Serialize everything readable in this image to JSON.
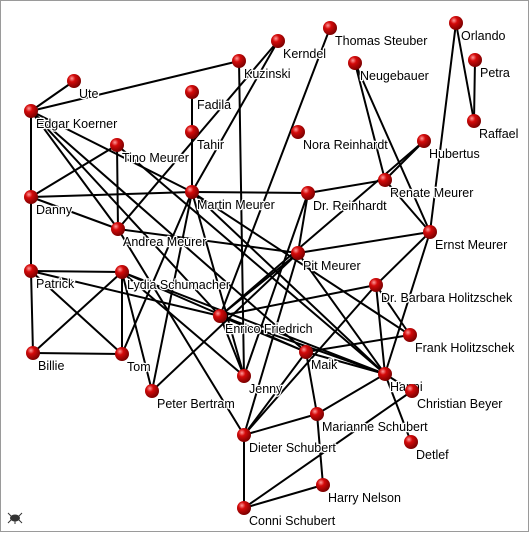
{
  "graph": {
    "nodes": [
      {
        "id": "ute",
        "label": "Ute"
      },
      {
        "id": "edgar_koerner",
        "label": "Edgar Koerner"
      },
      {
        "id": "danny",
        "label": "Danny"
      },
      {
        "id": "patrick",
        "label": "Patrick"
      },
      {
        "id": "billie",
        "label": "Billie"
      },
      {
        "id": "tino_meurer",
        "label": "Tino Meurer"
      },
      {
        "id": "andrea_meurer",
        "label": "Andrea Meurer"
      },
      {
        "id": "lydia_schumacher",
        "label": "Lydia Schumacher"
      },
      {
        "id": "tom",
        "label": "Tom"
      },
      {
        "id": "peter_bertram",
        "label": "Peter Bertram"
      },
      {
        "id": "kuzinski",
        "label": "Kuzinski"
      },
      {
        "id": "kerndel",
        "label": "Kerndel"
      },
      {
        "id": "thomas_steuber",
        "label": "Thomas Steuber"
      },
      {
        "id": "fadila",
        "label": "Fadila"
      },
      {
        "id": "tahir",
        "label": "Tahir"
      },
      {
        "id": "martin_meurer",
        "label": "Martin Meurer"
      },
      {
        "id": "enrico_friedrich",
        "label": "Enrico Friedrich"
      },
      {
        "id": "jenny",
        "label": "Jenny"
      },
      {
        "id": "dieter_schubert",
        "label": "Dieter Schubert"
      },
      {
        "id": "conni_schubert",
        "label": "Conni Schubert"
      },
      {
        "id": "harry_nelson",
        "label": "Harry Nelson"
      },
      {
        "id": "marianne_schubert",
        "label": "Marianne Schubert"
      },
      {
        "id": "maik",
        "label": "Maik"
      },
      {
        "id": "pit_meurer",
        "label": "Pit Meurer"
      },
      {
        "id": "dr_reinhardt",
        "label": "Dr. Reinhardt"
      },
      {
        "id": "nora_reinhardt",
        "label": "Nora Reinhardt"
      },
      {
        "id": "neugebauer",
        "label": "Neugebauer"
      },
      {
        "id": "renate_meurer",
        "label": "Renate Meurer"
      },
      {
        "id": "hubertus",
        "label": "Hubertus"
      },
      {
        "id": "ernst_meurer",
        "label": "Ernst Meurer"
      },
      {
        "id": "orlando",
        "label": "Orlando"
      },
      {
        "id": "petra",
        "label": "Petra"
      },
      {
        "id": "raffael",
        "label": "Raffael"
      },
      {
        "id": "dr_barbara_holitzschek",
        "label": "Dr. Barbara Holitzschek"
      },
      {
        "id": "frank_holitzschek",
        "label": "Frank Holitzschek"
      },
      {
        "id": "hanni",
        "label": "Hanni"
      },
      {
        "id": "christian_beyer",
        "label": "Christian Beyer"
      },
      {
        "id": "detlef",
        "label": "Detlef"
      }
    ],
    "edges": [
      [
        "ute",
        "edgar_koerner"
      ],
      [
        "edgar_koerner",
        "kuzinski"
      ],
      [
        "edgar_koerner",
        "danny"
      ],
      [
        "edgar_koerner",
        "patrick"
      ],
      [
        "edgar_koerner",
        "andrea_meurer"
      ],
      [
        "edgar_koerner",
        "martin_meurer"
      ],
      [
        "edgar_koerner",
        "enrico_friedrich"
      ],
      [
        "edgar_koerner",
        "maik"
      ],
      [
        "danny",
        "tino_meurer"
      ],
      [
        "danny",
        "martin_meurer"
      ],
      [
        "danny",
        "andrea_meurer"
      ],
      [
        "tino_meurer",
        "andrea_meurer"
      ],
      [
        "tino_meurer",
        "hanni"
      ],
      [
        "andrea_meurer",
        "kerndel"
      ],
      [
        "andrea_meurer",
        "pit_meurer"
      ],
      [
        "andrea_meurer",
        "dieter_schubert"
      ],
      [
        "patrick",
        "lydia_schumacher"
      ],
      [
        "patrick",
        "billie"
      ],
      [
        "patrick",
        "tom"
      ],
      [
        "patrick",
        "enrico_friedrich"
      ],
      [
        "lydia_schumacher",
        "billie"
      ],
      [
        "lydia_schumacher",
        "tom"
      ],
      [
        "lydia_schumacher",
        "peter_bertram"
      ],
      [
        "lydia_schumacher",
        "maik"
      ],
      [
        "lydia_schumacher",
        "hanni"
      ],
      [
        "billie",
        "tom"
      ],
      [
        "tom",
        "martin_meurer"
      ],
      [
        "kuzinski",
        "jenny"
      ],
      [
        "kerndel",
        "martin_meurer"
      ],
      [
        "thomas_steuber",
        "enrico_friedrich"
      ],
      [
        "fadila",
        "tahir"
      ],
      [
        "tahir",
        "martin_meurer"
      ],
      [
        "martin_meurer",
        "peter_bertram"
      ],
      [
        "martin_meurer",
        "dr_reinhardt"
      ],
      [
        "martin_meurer",
        "hanni"
      ],
      [
        "martin_meurer",
        "frank_holitzschek"
      ],
      [
        "peter_bertram",
        "pit_meurer"
      ],
      [
        "pit_meurer",
        "ernst_meurer"
      ],
      [
        "pit_meurer",
        "hanni"
      ],
      [
        "pit_meurer",
        "dr_reinhardt"
      ],
      [
        "pit_meurer",
        "dieter_schubert"
      ],
      [
        "pit_meurer",
        "enrico_friedrich"
      ],
      [
        "dr_reinhardt",
        "renate_meurer"
      ],
      [
        "dr_reinhardt",
        "jenny"
      ],
      [
        "renate_meurer",
        "neugebauer"
      ],
      [
        "renate_meurer",
        "hubertus"
      ],
      [
        "renate_meurer",
        "ernst_meurer"
      ],
      [
        "neugebauer",
        "ernst_meurer"
      ],
      [
        "hubertus",
        "enrico_friedrich"
      ],
      [
        "ernst_meurer",
        "dr_barbara_holitzschek"
      ],
      [
        "ernst_meurer",
        "orlando"
      ],
      [
        "ernst_meurer",
        "hanni"
      ],
      [
        "orlando",
        "raffael"
      ],
      [
        "petra",
        "raffael"
      ],
      [
        "dr_barbara_holitzschek",
        "enrico_friedrich"
      ],
      [
        "dr_barbara_holitzschek",
        "frank_holitzschek"
      ],
      [
        "dr_barbara_holitzschek",
        "hanni"
      ],
      [
        "dr_barbara_holitzschek",
        "dieter_schubert"
      ],
      [
        "frank_holitzschek",
        "maik"
      ],
      [
        "maik",
        "hanni"
      ],
      [
        "maik",
        "enrico_friedrich"
      ],
      [
        "maik",
        "marianne_schubert"
      ],
      [
        "maik",
        "dieter_schubert"
      ],
      [
        "hanni",
        "marianne_schubert"
      ],
      [
        "hanni",
        "christian_beyer"
      ],
      [
        "hanni",
        "detlef"
      ],
      [
        "hanni",
        "enrico_friedrich"
      ],
      [
        "marianne_schubert",
        "dieter_schubert"
      ],
      [
        "marianne_schubert",
        "harry_nelson"
      ],
      [
        "jenny",
        "enrico_friedrich"
      ],
      [
        "dieter_schubert",
        "conni_schubert"
      ],
      [
        "harry_nelson",
        "conni_schubert"
      ],
      [
        "christian_beyer",
        "conni_schubert"
      ],
      [
        "jenny",
        "martin_meurer"
      ],
      [
        "jenny",
        "lydia_schumacher"
      ]
    ]
  },
  "colors": {
    "node_fill": "#d40a0a",
    "node_highlight": "#ff9a9a",
    "node_shadow": "#7a0000",
    "edge": "#000000",
    "border": "#9a9a9a",
    "background": "#ffffff"
  },
  "icons": {
    "corner_logo": "yed-bug-icon"
  }
}
